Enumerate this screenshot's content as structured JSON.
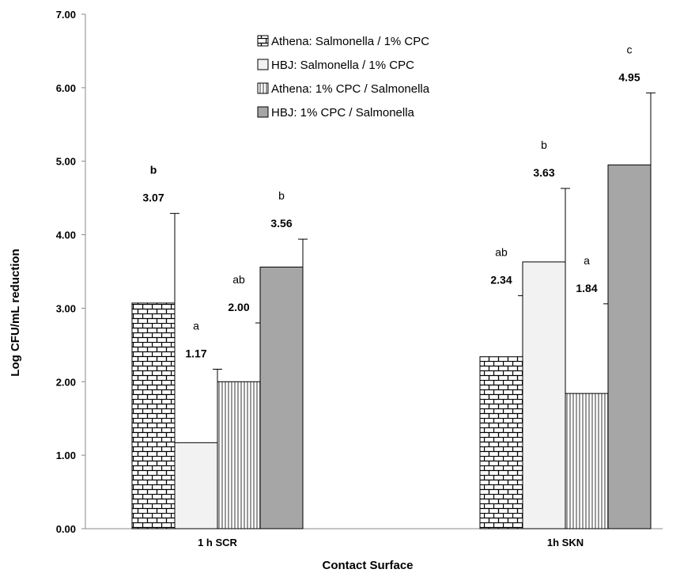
{
  "chart_data": {
    "type": "bar",
    "title": "",
    "xlabel": "Contact Surface",
    "ylabel": "Log  CFU/mL reduction",
    "ylim": [
      0,
      7
    ],
    "y_ticks": [
      "0.00",
      "1.00",
      "2.00",
      "3.00",
      "4.00",
      "5.00",
      "6.00",
      "7.00"
    ],
    "categories": [
      "1 h SCR",
      "1h SKN"
    ],
    "legend_position": "top-center",
    "grid": false,
    "series": [
      {
        "name": "Athena:  Salmonella / 1% CPC",
        "pattern": "brick",
        "color": "#ffffff",
        "values": [
          3.07,
          2.34
        ],
        "error_upper": [
          4.29,
          3.17
        ],
        "value_labels": [
          "3.07",
          "2.34"
        ],
        "letters": [
          "b",
          "ab"
        ],
        "letter_bold": [
          true,
          false
        ]
      },
      {
        "name": "HBJ:  Salmonella / 1% CPC",
        "pattern": "plain-light",
        "color": "#f2f2f2",
        "values": [
          1.17,
          3.63
        ],
        "error_upper": [
          2.17,
          4.63
        ],
        "value_labels": [
          "1.17",
          "3.63"
        ],
        "letters": [
          "a",
          "b"
        ],
        "letter_bold": [
          false,
          false
        ]
      },
      {
        "name": "Athena:  1% CPC / Salmonella",
        "pattern": "vertical-stripes",
        "color": "#ffffff",
        "values": [
          2.0,
          1.84
        ],
        "error_upper": [
          2.8,
          3.06
        ],
        "value_labels": [
          "2.00",
          "1.84"
        ],
        "letters": [
          "ab",
          "a"
        ],
        "letter_bold": [
          false,
          false
        ]
      },
      {
        "name": "HBJ:  1% CPC / Salmonella",
        "pattern": "solid-gray",
        "color": "#a6a6a6",
        "values": [
          3.56,
          4.95
        ],
        "error_upper": [
          3.94,
          5.93
        ],
        "value_labels": [
          "3.56",
          "4.95"
        ],
        "letters": [
          "b",
          "c"
        ],
        "letter_bold": [
          false,
          false
        ]
      }
    ]
  }
}
